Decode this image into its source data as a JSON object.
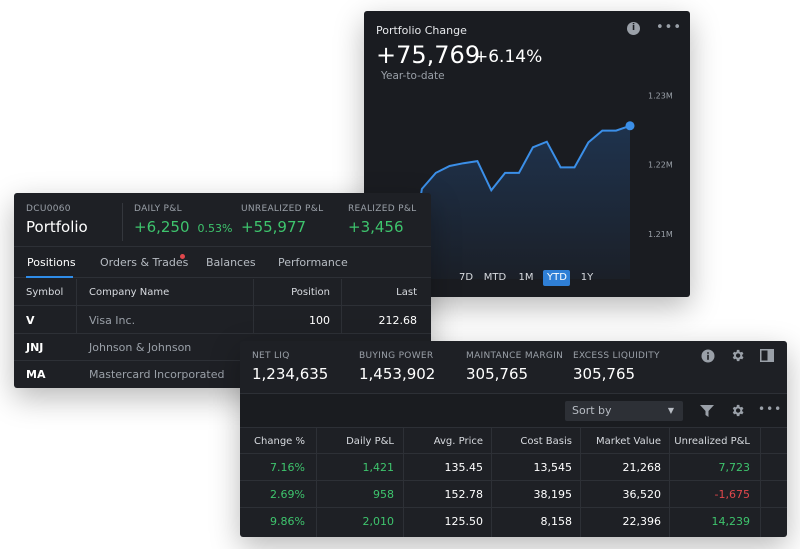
{
  "chart_card": {
    "title": "Portfolio Change",
    "change_value": "+75,769",
    "change_pct": "+6.14%",
    "period_label": "Year-to-date",
    "y_ticks": [
      "1.23M",
      "1.22M",
      "1.21M"
    ],
    "ranges": [
      "7D",
      "MTD",
      "1M",
      "YTD",
      "1Y"
    ],
    "active_range": "YTD",
    "line_color": "#3b8fe8",
    "fill_color": "#1f3450"
  },
  "chart_data": {
    "type": "area",
    "y_unit": "M",
    "ylim": [
      1.2035,
      1.2335
    ],
    "values": [
      1.204,
      1.2165,
      1.2188,
      1.2198,
      1.2202,
      1.2205,
      1.2163,
      1.2188,
      1.2188,
      1.2225,
      1.2233,
      1.2196,
      1.2196,
      1.2232,
      1.2249,
      1.2249,
      1.2256
    ],
    "y_ticks": [
      1.23,
      1.22,
      1.21
    ]
  },
  "portfolio": {
    "account_id": "DCU0060",
    "name": "Portfolio",
    "daily_pl_label": "DAILY P&L",
    "daily_pl_value": "+6,250",
    "daily_pl_pct": "0.53%",
    "unrealized_label": "UNREALIZED P&L",
    "unrealized_value": "+55,977",
    "realized_label": "REALIZED P&L",
    "realized_value": "+3,456",
    "tabs": [
      "Positions",
      "Orders & Trades",
      "Balances",
      "Performance"
    ],
    "columns": [
      "Symbol",
      "Company Name",
      "Position",
      "Last"
    ],
    "rows": [
      {
        "symbol": "V",
        "company": "Visa Inc.",
        "position": "100",
        "last": "212.68"
      },
      {
        "symbol": "JNJ",
        "company": "Johnson & Johnson",
        "position": "",
        "last": ""
      },
      {
        "symbol": "MA",
        "company": "Mastercard Incorporated",
        "position": "",
        "last": ""
      }
    ]
  },
  "account": {
    "net_liq_label": "NET LIQ",
    "net_liq_value": "1,234,635",
    "buying_power_label": "BUYING POWER",
    "buying_power_value": "1,453,902",
    "maint_margin_label": "MAINTANCE MARGIN",
    "maint_margin_value": "305,765",
    "excess_liq_label": "EXCESS LIQUIDITY",
    "excess_liq_value": "305,765",
    "sort_placeholder": "Sort by",
    "columns": [
      "Change %",
      "Daily P&L",
      "Avg. Price",
      "Cost Basis",
      "Market Value",
      "Unrealized P&L"
    ],
    "rows": [
      {
        "change": "7.16%",
        "daily": "1,421",
        "avg": "135.45",
        "cost": "13,545",
        "market": "21,268",
        "unrealized": "7,723",
        "unrealized_status": "positive"
      },
      {
        "change": "2.69%",
        "daily": "958",
        "avg": "152.78",
        "cost": "38,195",
        "market": "36,520",
        "unrealized": "-1,675",
        "unrealized_status": "negative"
      },
      {
        "change": "9.86%",
        "daily": "2,010",
        "avg": "125.50",
        "cost": "8,158",
        "market": "22,396",
        "unrealized": "14,239",
        "unrealized_status": "positive"
      }
    ],
    "positive_color": "#3ec46d",
    "negative_color": "#e0474c"
  }
}
